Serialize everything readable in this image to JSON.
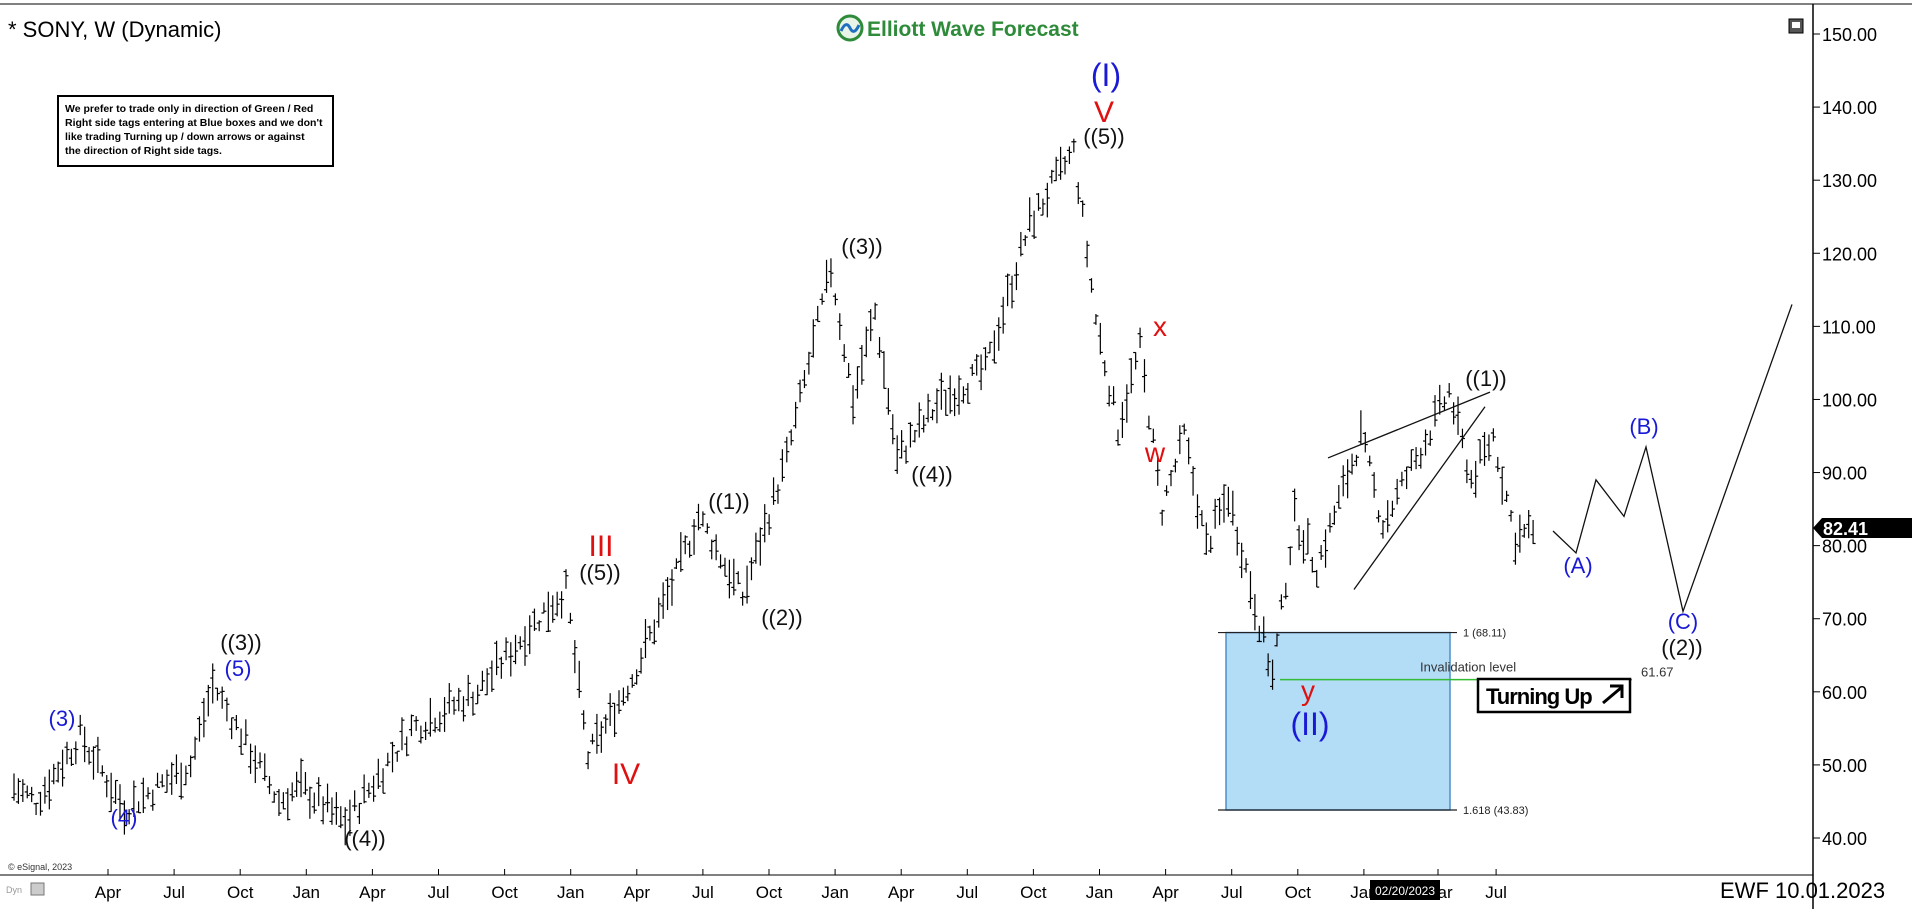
{
  "header": {
    "symbol_title": "* SONY, W (Dynamic)",
    "brand": "Elliott Wave Forecast",
    "footer_date": "EWF 10.01.2023",
    "copyright": "© eSignal, 2023",
    "corner_mark": "Dyn"
  },
  "disclaimer": {
    "lines": [
      "We prefer to trade only in direction of Green / Red",
      "Right side tags entering at Blue boxes and we don't",
      "like trading Turning up / down arrows or against",
      "the direction of Right side tags."
    ]
  },
  "colors": {
    "bars": "#000000",
    "wave_blue": "#1a1ad6",
    "wave_red": "#e01010",
    "wave_black": "#111111",
    "blue_box": "#b3dcf7",
    "blue_box_border": "#4c8fc7",
    "invalidation_line": "#33bb33",
    "price_tag_bg": "#000000"
  },
  "chart_data": {
    "type": "ohlc",
    "symbol": "SONY",
    "interval": "W",
    "ylim": [
      37,
      152
    ],
    "y_ticks": [
      "150.00",
      "140.00",
      "130.00",
      "120.00",
      "110.00",
      "100.00",
      "90.00",
      "80.00",
      "70.00",
      "60.00",
      "50.00",
      "40.00"
    ],
    "x_ticks": [
      "Apr",
      "Jul",
      "Oct",
      "Jan",
      "Apr",
      "Jul",
      "Oct",
      "Jan",
      "Apr",
      "Jul",
      "Oct",
      "Jan",
      "Apr",
      "Jul",
      "Oct",
      "Jan",
      "Apr",
      "Jul",
      "Oct",
      "Jan",
      "Mar",
      "Jul"
    ],
    "crosshair_date": "02/20/2023",
    "last_price": "82.41",
    "price_path": [
      [
        "2018-01",
        47
      ],
      [
        "2018-02",
        45
      ],
      [
        "2018-04",
        54
      ],
      [
        "2018-06",
        44
      ],
      [
        "2018-09",
        50
      ],
      [
        "2018-10",
        61
      ],
      [
        "2019-01",
        45
      ],
      [
        "2019-02",
        47
      ],
      [
        "2019-04",
        42
      ],
      [
        "2019-07",
        55
      ],
      [
        "2019-10",
        60
      ],
      [
        "2020-01",
        71
      ],
      [
        "2020-02",
        74
      ],
      [
        "2020-03",
        51
      ],
      [
        "2020-05",
        62
      ],
      [
        "2020-07",
        76
      ],
      [
        "2020-08",
        84
      ],
      [
        "2020-10",
        73
      ],
      [
        "2020-12",
        92
      ],
      [
        "2021-02",
        118
      ],
      [
        "2021-03",
        100
      ],
      [
        "2021-04",
        112
      ],
      [
        "2021-05",
        92
      ],
      [
        "2021-07",
        100
      ],
      [
        "2021-09",
        104
      ],
      [
        "2021-11",
        124
      ],
      [
        "2022-01",
        134
      ],
      [
        "2022-02",
        111
      ],
      [
        "2022-03",
        96
      ],
      [
        "2022-04",
        107
      ],
      [
        "2022-05",
        85
      ],
      [
        "2022-06",
        95
      ],
      [
        "2022-07",
        80
      ],
      [
        "2022-08",
        87
      ],
      [
        "2022-10",
        62
      ],
      [
        "2022-11",
        84
      ],
      [
        "2022-12",
        77
      ],
      [
        "2023-02",
        95
      ],
      [
        "2023-03",
        83
      ],
      [
        "2023-06",
        101
      ],
      [
        "2023-07",
        89
      ],
      [
        "2023-08",
        95
      ],
      [
        "2023-09",
        81
      ],
      [
        "2023-10",
        82.41
      ]
    ],
    "projection": [
      [
        "2023-10",
        82
      ],
      [
        "2023-10",
        79
      ],
      [
        "2023-11",
        89
      ],
      [
        "2023-12",
        84
      ],
      [
        "2024-01",
        93.5
      ],
      [
        "2024-02",
        71
      ],
      [
        "2024-04",
        113
      ]
    ],
    "wave_labels": [
      {
        "text": "(3)",
        "date": "2018-04",
        "price": 54,
        "color": "blue"
      },
      {
        "text": "(4)",
        "date": "2018-06",
        "price": 44,
        "color": "blue"
      },
      {
        "text": "((3))",
        "date": "2018-10",
        "price": 61,
        "color": "black"
      },
      {
        "text": "(5)",
        "date": "2018-10",
        "price": 61,
        "color": "blue"
      },
      {
        "text": "((4))",
        "date": "2019-04",
        "price": 42,
        "color": "black"
      },
      {
        "text": "III",
        "date": "2020-02",
        "price": 74,
        "color": "red"
      },
      {
        "text": "((5))",
        "date": "2020-02",
        "price": 74,
        "color": "black"
      },
      {
        "text": "IV",
        "date": "2020-03",
        "price": 51,
        "color": "red"
      },
      {
        "text": "((1))",
        "date": "2020-08",
        "price": 84,
        "color": "black"
      },
      {
        "text": "((2))",
        "date": "2020-10",
        "price": 73,
        "color": "black"
      },
      {
        "text": "((3))",
        "date": "2021-02",
        "price": 118,
        "color": "black"
      },
      {
        "text": "((4))",
        "date": "2021-05",
        "price": 92,
        "color": "black"
      },
      {
        "text": "(I)",
        "date": "2022-01",
        "price": 134,
        "color": "blue"
      },
      {
        "text": "V",
        "date": "2022-01",
        "price": 134,
        "color": "red"
      },
      {
        "text": "((5))",
        "date": "2022-01",
        "price": 134,
        "color": "black"
      },
      {
        "text": "x",
        "date": "2022-04",
        "price": 107,
        "color": "red"
      },
      {
        "text": "w",
        "date": "2022-03",
        "price": 96,
        "color": "red"
      },
      {
        "text": "y",
        "date": "2022-10",
        "price": 62,
        "color": "red"
      },
      {
        "text": "(II)",
        "date": "2022-10",
        "price": 62,
        "color": "blue"
      },
      {
        "text": "((1))",
        "date": "2023-06",
        "price": 101,
        "color": "black"
      },
      {
        "text": "(A)",
        "date": "2023-10",
        "price": 79,
        "color": "blue"
      },
      {
        "text": "(B)",
        "date": "2024-01",
        "price": 93.5,
        "color": "blue"
      },
      {
        "text": "(C)",
        "date": "2024-02",
        "price": 71,
        "color": "blue"
      },
      {
        "text": "((2))",
        "date": "2024-02",
        "price": 71,
        "color": "black"
      }
    ],
    "fib_levels": [
      {
        "label": "1 (68.11)",
        "price": 68.11
      },
      {
        "label": "1.618 (43.83)",
        "price": 43.83
      }
    ],
    "invalidation": {
      "label": "Invalidation level",
      "price": 61.67,
      "value_label": "61.67"
    },
    "turning_up_label": "Turning Up",
    "wedge_lines": [
      {
        "from": [
          "2022-12",
          74
        ],
        "to": [
          "2023-06",
          99
        ]
      },
      {
        "from": [
          "2022-12",
          92
        ],
        "to": [
          "2023-06",
          101
        ]
      }
    ]
  }
}
